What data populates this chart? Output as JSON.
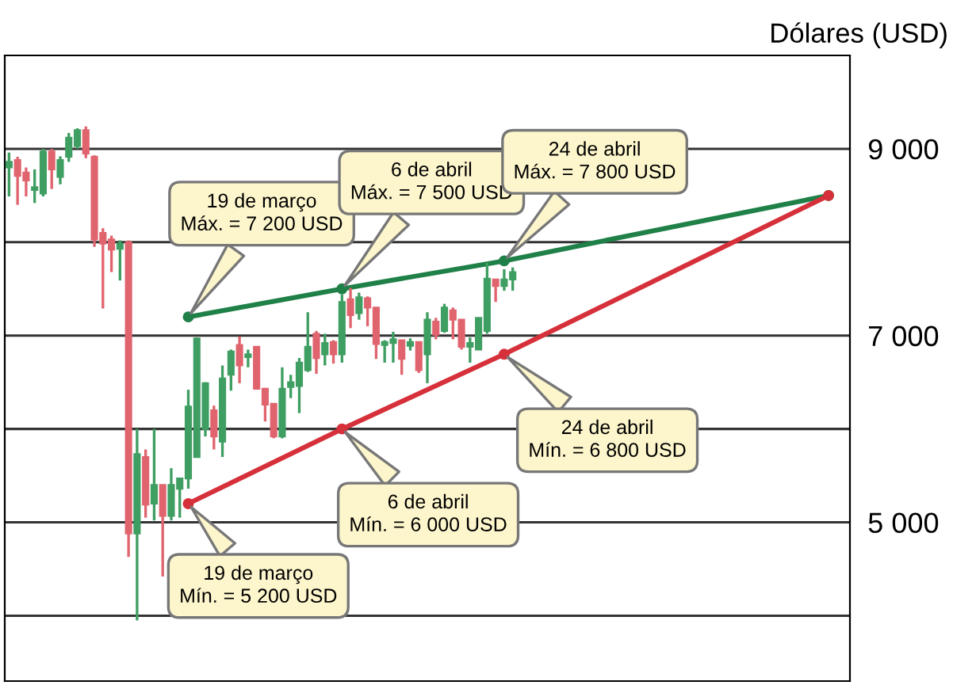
{
  "chart_data": {
    "type": "candlestick",
    "ylabel": "Dólares (USD)",
    "categories": [
      null,
      null,
      null,
      null,
      null,
      null,
      null,
      null,
      null,
      null,
      null,
      null,
      null,
      null,
      null,
      null,
      null,
      null,
      null,
      null,
      null,
      null,
      null,
      null,
      null,
      null,
      null,
      null,
      null,
      null,
      null,
      null,
      null,
      null,
      null,
      null,
      null,
      null,
      null,
      null,
      null,
      null,
      null,
      null,
      null,
      null,
      null,
      null,
      null,
      null,
      null,
      null,
      null,
      null,
      null,
      null,
      null,
      null,
      null,
      null,
      null,
      null,
      null,
      null,
      null,
      null,
      null,
      null,
      null,
      null,
      null,
      null,
      null,
      null,
      null,
      null,
      null,
      null,
      null,
      null,
      null,
      null,
      null,
      null,
      null,
      null,
      null,
      null,
      null,
      null,
      null,
      null,
      null,
      null,
      null,
      null,
      null,
      null,
      null
    ],
    "ohlc": [
      [
        8800,
        8960,
        8490,
        8860
      ],
      [
        8880,
        8915,
        8400,
        8710
      ],
      [
        8745,
        8800,
        8490,
        8660
      ],
      [
        8560,
        8780,
        8420,
        8590
      ],
      [
        8520,
        9000,
        8490,
        8970
      ],
      [
        8970,
        9000,
        8570,
        8780
      ],
      [
        8700,
        8920,
        8620,
        8880
      ],
      [
        8915,
        9170,
        8860,
        9120
      ],
      [
        9030,
        9220,
        9000,
        9200
      ],
      [
        9200,
        9240,
        8900,
        8950
      ],
      [
        8915,
        8930,
        7950,
        8030
      ],
      [
        8100,
        8150,
        7290,
        7985
      ],
      [
        8030,
        8070,
        7680,
        7920
      ],
      [
        7930,
        8020,
        7590,
        7985
      ],
      [
        8000,
        8020,
        4630,
        4880
      ],
      [
        4880,
        6000,
        3950,
        5730
      ],
      [
        5700,
        5780,
        5050,
        5190
      ],
      [
        5200,
        6000,
        5020,
        5400
      ],
      [
        5400,
        5400,
        4420,
        5070
      ],
      [
        5070,
        5580,
        5020,
        5400
      ],
      [
        5360,
        5475,
        5050,
        5470
      ],
      [
        5470,
        6420,
        5360,
        6240
      ],
      [
        5700,
        6980,
        5700,
        6970
      ],
      [
        6000,
        6500,
        5920,
        6490
      ],
      [
        6200,
        6250,
        5780,
        5920
      ],
      [
        5865,
        6680,
        5700,
        6540
      ],
      [
        6580,
        6850,
        6410,
        6830
      ],
      [
        6900,
        6990,
        6490,
        6680
      ],
      [
        6770,
        6850,
        6660,
        6800
      ],
      [
        6880,
        6880,
        6420,
        6430
      ],
      [
        6430,
        6440,
        6080,
        6260
      ],
      [
        6270,
        6270,
        5900,
        5920
      ],
      [
        5920,
        6660,
        5900,
        6430
      ],
      [
        6450,
        6580,
        6330,
        6500
      ],
      [
        6460,
        6760,
        6170,
        6710
      ],
      [
        6630,
        7250,
        6610,
        6880
      ],
      [
        7020,
        7050,
        6590,
        6760
      ],
      [
        6800,
        7020,
        6680,
        6920
      ],
      [
        6930,
        6950,
        6700,
        6800
      ],
      [
        6800,
        7440,
        6710,
        7360
      ],
      [
        7390,
        7510,
        7080,
        7220
      ],
      [
        7240,
        7460,
        7170,
        7410
      ],
      [
        7400,
        7420,
        7100,
        7300
      ],
      [
        7300,
        7300,
        6750,
        6910
      ],
      [
        6900,
        6950,
        6710,
        6930
      ],
      [
        6920,
        7040,
        6710,
        6960
      ],
      [
        6950,
        6950,
        6580,
        6750
      ],
      [
        6890,
        6970,
        6840,
        6930
      ],
      [
        6930,
        6930,
        6600,
        6630
      ],
      [
        6800,
        7250,
        6490,
        7170
      ],
      [
        7150,
        7190,
        6960,
        7010
      ],
      [
        7050,
        7340,
        7030,
        7300
      ],
      [
        7270,
        7300,
        6960,
        7170
      ],
      [
        7170,
        7170,
        6850,
        6880
      ],
      [
        6880,
        6980,
        6710,
        6920
      ],
      [
        6850,
        7190,
        6850,
        7190
      ],
      [
        7050,
        7780,
        7020,
        7610
      ],
      [
        7600,
        7600,
        7360,
        7530
      ],
      [
        7530,
        7710,
        7480,
        7600
      ],
      [
        7600,
        7730,
        7480,
        7680
      ],
      null,
      null,
      null,
      null,
      null,
      null,
      null,
      null,
      null,
      null,
      null,
      null,
      null,
      null,
      null,
      null,
      null,
      null,
      null,
      null,
      null,
      null,
      null,
      null,
      null,
      null,
      null,
      null,
      null,
      null,
      null,
      null,
      null,
      null,
      null,
      null,
      null,
      null,
      null
    ],
    "colors": [
      "#3f9e62",
      "#e0646e",
      "#e0646e",
      "#3f9e62",
      "#3f9e62",
      "#e0646e",
      "#3f9e62",
      "#3f9e62",
      "#3f9e62",
      "#e0646e",
      "#e0646e",
      "#e0646e",
      "#e0646e",
      "#3f9e62",
      "#e0646e",
      "#3f9e62",
      "#e0646e",
      "#3f9e62",
      "#e0646e",
      "#3f9e62",
      "#3f9e62",
      "#3f9e62",
      "#3f9e62",
      "#3f9e62",
      "#e0646e",
      "#3f9e62",
      "#3f9e62",
      "#e0646e",
      "#3f9e62",
      "#e0646e",
      "#e0646e",
      "#e0646e",
      "#3f9e62",
      "#3f9e62",
      "#3f9e62",
      "#3f9e62",
      "#e0646e",
      "#3f9e62",
      "#e0646e",
      "#3f9e62",
      "#e0646e",
      "#3f9e62",
      "#e0646e",
      "#e0646e",
      "#3f9e62",
      "#3f9e62",
      "#e0646e",
      "#3f9e62",
      "#e0646e",
      "#3f9e62",
      "#e0646e",
      "#3f9e62",
      "#e0646e",
      "#e0646e",
      "#3f9e62",
      "#3f9e62",
      "#3f9e62",
      "#e0646e",
      "#3f9e62",
      "#3f9e62",
      null,
      null,
      null,
      null,
      null,
      null,
      null,
      null,
      null,
      null,
      null,
      null,
      null,
      null,
      null,
      null,
      null,
      null,
      null,
      null,
      null,
      null,
      null,
      null,
      null,
      null,
      null,
      null,
      null,
      null,
      null,
      null,
      null,
      null,
      null,
      null,
      null,
      null,
      null
    ],
    "series": [
      {
        "type": "line",
        "color": "#1f8048",
        "marker": "circle",
        "values": [
          null,
          null,
          null,
          null,
          null,
          null,
          null,
          null,
          null,
          null,
          null,
          null,
          null,
          null,
          null,
          null,
          null,
          null,
          null,
          null,
          null,
          7200,
          null,
          null,
          null,
          null,
          null,
          null,
          null,
          null,
          null,
          null,
          null,
          null,
          null,
          null,
          null,
          null,
          null,
          7500,
          null,
          null,
          null,
          null,
          null,
          null,
          null,
          null,
          null,
          null,
          null,
          null,
          null,
          null,
          null,
          null,
          null,
          null,
          7800,
          null,
          null,
          null,
          null,
          null,
          null,
          null,
          null,
          null,
          null,
          null,
          null,
          null,
          null,
          null,
          null,
          null,
          null,
          null,
          null,
          null,
          null,
          null,
          null,
          null,
          null,
          null,
          null,
          null,
          null,
          null,
          null,
          null,
          null,
          null,
          null,
          null,
          8500,
          null,
          null
        ]
      },
      {
        "type": "line",
        "color": "#d6303a",
        "marker": "circle",
        "values": [
          null,
          null,
          null,
          null,
          null,
          null,
          null,
          null,
          null,
          null,
          null,
          null,
          null,
          null,
          null,
          null,
          null,
          null,
          null,
          null,
          null,
          5200,
          null,
          null,
          null,
          null,
          null,
          null,
          null,
          null,
          null,
          null,
          null,
          null,
          null,
          null,
          null,
          null,
          null,
          6000,
          null,
          null,
          null,
          null,
          null,
          null,
          null,
          null,
          null,
          null,
          null,
          null,
          null,
          null,
          null,
          null,
          null,
          null,
          6800,
          null,
          null,
          null,
          null,
          null,
          null,
          null,
          null,
          null,
          null,
          null,
          null,
          null,
          null,
          null,
          null,
          null,
          null,
          null,
          null,
          null,
          null,
          null,
          null,
          null,
          null,
          null,
          null,
          null,
          null,
          null,
          null,
          null,
          null,
          null,
          null,
          null,
          8500,
          null,
          null
        ]
      }
    ],
    "annotations": [
      "19 de março\nMáx. = 7 200 USD",
      "6 de abril\nMáx. = 7 500 USD",
      "24 de abril\nMáx. = 7 800 USD",
      "19 de março\nMín. = 5 200 USD",
      "6 de abril\nMín. = 6 000 USD",
      "24 de abril\nMín. = 6 800 USD"
    ],
    "ylim": [
      3300,
      10000
    ],
    "yticks": [
      {
        "value": 4000,
        "label": null
      },
      {
        "value": 5000,
        "label": "5 000"
      },
      {
        "value": 6000,
        "label": null
      },
      {
        "value": 7000,
        "label": "7 000"
      },
      {
        "value": 8000,
        "label": null
      },
      {
        "value": 9000,
        "label": "9 000"
      }
    ],
    "grid": "y",
    "tick_labels": "y"
  }
}
